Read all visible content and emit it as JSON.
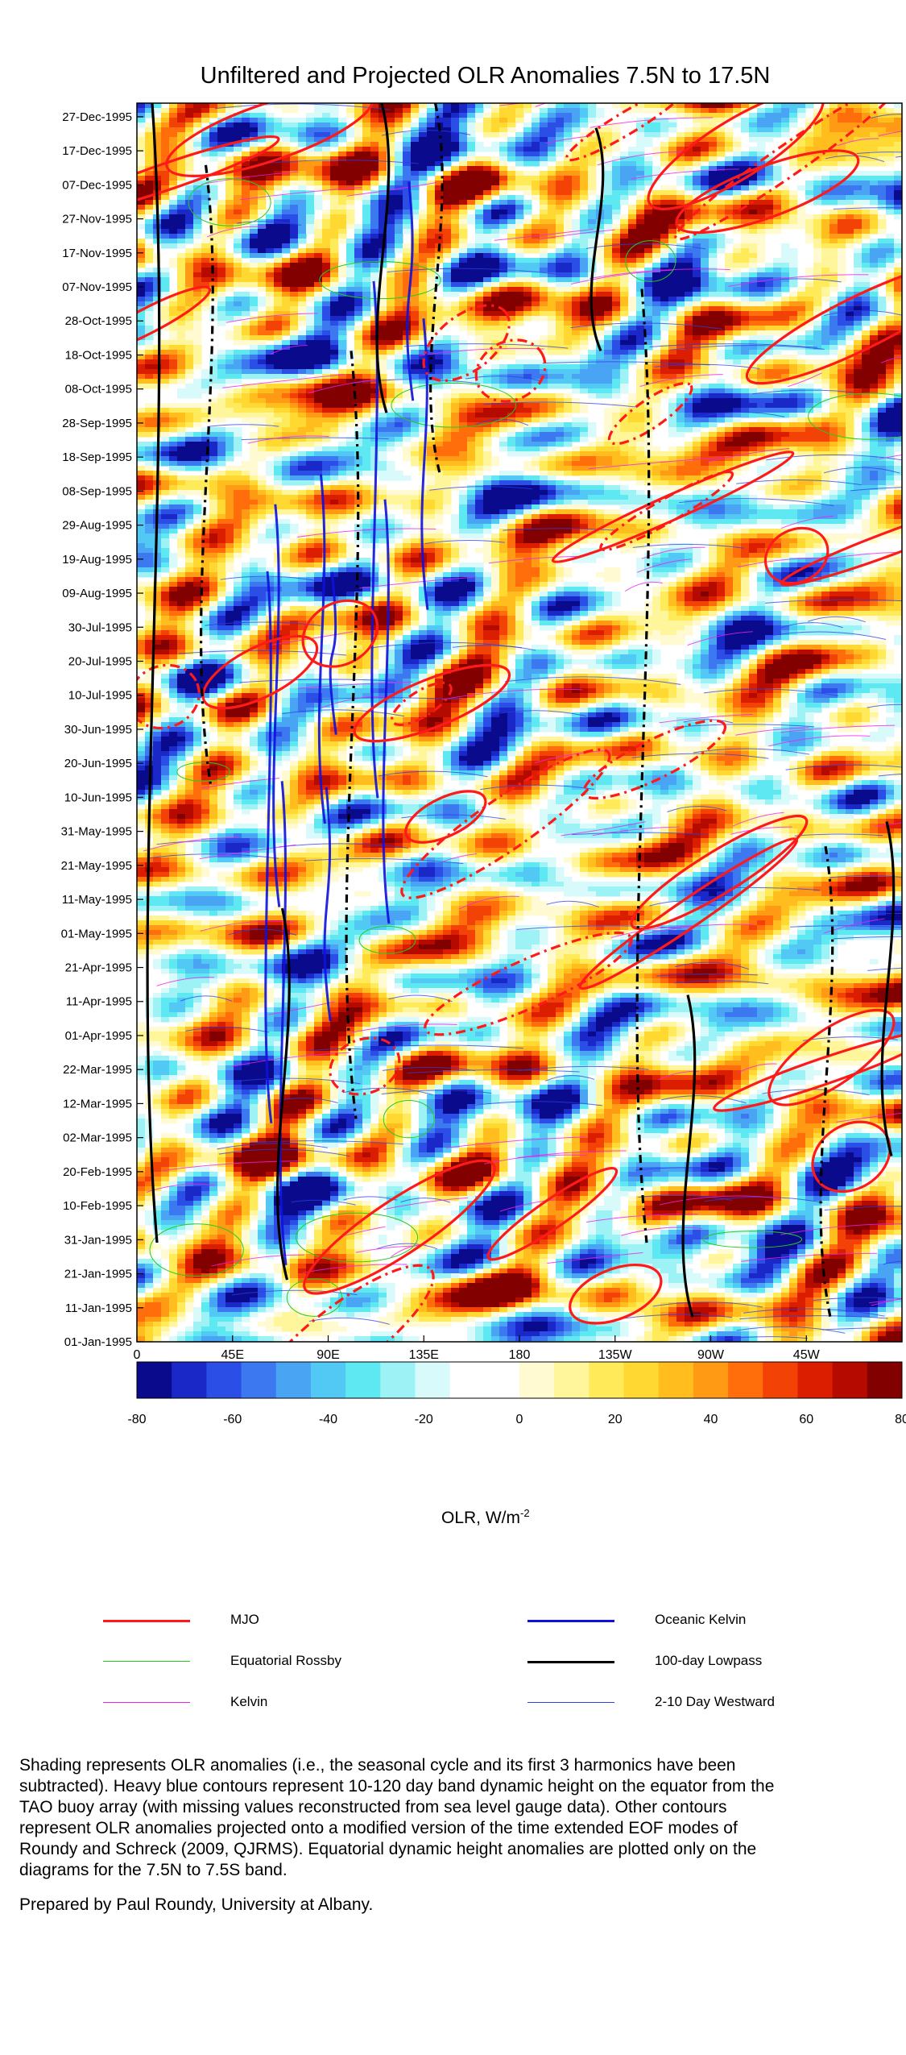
{
  "chart_data": {
    "type": "heatmap",
    "title": "Unfiltered and Projected OLR Anomalies 7.5N to 17.5N",
    "xaxis": {
      "label": "",
      "range_deg_east": [
        0,
        360
      ],
      "tick_labels": [
        "0",
        "45E",
        "90E",
        "135E",
        "180",
        "135W",
        "90W",
        "45W"
      ],
      "tick_values_deg_east": [
        0,
        45,
        90,
        135,
        180,
        225,
        270,
        315
      ]
    },
    "yaxis": {
      "label": "",
      "range": [
        "1995-01-01",
        "1995-12-31"
      ],
      "tick_labels": [
        "01-Jan-1995",
        "11-Jan-1995",
        "21-Jan-1995",
        "31-Jan-1995",
        "10-Feb-1995",
        "20-Feb-1995",
        "02-Mar-1995",
        "12-Mar-1995",
        "22-Mar-1995",
        "01-Apr-1995",
        "11-Apr-1995",
        "21-Apr-1995",
        "01-May-1995",
        "11-May-1995",
        "21-May-1995",
        "31-May-1995",
        "10-Jun-1995",
        "20-Jun-1995",
        "30-Jun-1995",
        "10-Jul-1995",
        "20-Jul-1995",
        "30-Jul-1995",
        "09-Aug-1995",
        "19-Aug-1995",
        "29-Aug-1995",
        "08-Sep-1995",
        "18-Sep-1995",
        "28-Sep-1995",
        "08-Oct-1995",
        "18-Oct-1995",
        "28-Oct-1995",
        "07-Nov-1995",
        "17-Nov-1995",
        "27-Nov-1995",
        "07-Dec-1995",
        "17-Dec-1995",
        "27-Dec-1995"
      ]
    },
    "colorbar": {
      "label": "OLR, W/m",
      "label_superscript": "-2",
      "range": [
        -80,
        80
      ],
      "tick_labels": [
        "-80",
        "-60",
        "-40",
        "-20",
        "0",
        "20",
        "40",
        "60",
        "80"
      ],
      "tick_values": [
        -80,
        -60,
        -40,
        -20,
        0,
        20,
        40,
        60,
        80
      ],
      "colors": [
        "#0a0a8c",
        "#1a28c8",
        "#2a4ee6",
        "#3c78f0",
        "#4aa4f4",
        "#52c8f4",
        "#5ee8f2",
        "#9cf2f4",
        "#d8fafa",
        "#ffffff",
        "#ffffff",
        "#fffad2",
        "#fff59a",
        "#ffeb5a",
        "#ffd832",
        "#ffbe1e",
        "#ff9a14",
        "#ff6e0a",
        "#f24205",
        "#dc1e00",
        "#b40a00",
        "#820000"
      ]
    },
    "series": [
      {
        "name": "MJO",
        "color": "#ff1a1a",
        "style": "solid"
      },
      {
        "name": "Equatorial Rossby",
        "color": "#22cc22",
        "style": "solid"
      },
      {
        "name": "Kelvin",
        "color": "#ee22ee",
        "style": "solid"
      },
      {
        "name": "Oceanic Kelvin",
        "color": "#1010dd",
        "style": "solid"
      },
      {
        "name": "100-day Lowpass",
        "color": "#000000",
        "style": "solid"
      },
      {
        "name": "2-10 Day Westward",
        "color": "#2b3fe6",
        "style": "solid"
      }
    ],
    "legend_position": "below"
  },
  "caption": {
    "lines": [
      "Shading represents OLR anomalies (i.e., the seasonal cycle and its first 3 harmonics have been",
      "subtracted). Heavy blue contours represent 10-120 day band dynamic height on the equator from the",
      "TAO buoy array (with missing values reconstructed from sea level gauge data). Other contours",
      "represent OLR anomalies projected onto a modified version of the time extended EOF modes of",
      "Roundy and Schreck (2009, QJRMS). Equatorial dynamic height anomalies are plotted only on the",
      "diagrams for the 7.5N to 7.5S band."
    ],
    "credit": "Prepared by Paul Roundy, University at Albany."
  }
}
